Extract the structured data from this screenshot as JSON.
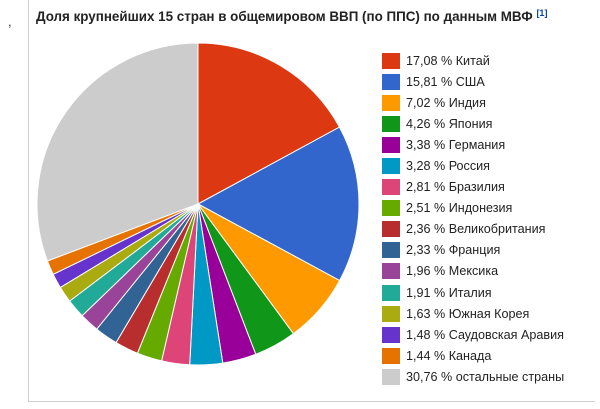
{
  "page": {
    "stray_mark": ",",
    "title": "Доля крупнейших 15 стран в общемировом ВВП (по ППС) по данным МВФ",
    "footnote": "[1]"
  },
  "chart_data": {
    "type": "pie",
    "title": "Доля крупнейших 15 стран в общемировом ВВП (по ППС) по данным МВФ",
    "unit": "%",
    "legend_position": "right",
    "slices": [
      {
        "name": "Китай",
        "value": 17.08,
        "label": "17,08 % Китай",
        "color": "#dc3912"
      },
      {
        "name": "США",
        "value": 15.81,
        "label": "15,81 % США",
        "color": "#3366cc"
      },
      {
        "name": "Индия",
        "value": 7.02,
        "label": "7,02 % Индия",
        "color": "#ff9900"
      },
      {
        "name": "Япония",
        "value": 4.26,
        "label": "4,26 % Япония",
        "color": "#109618"
      },
      {
        "name": "Германия",
        "value": 3.38,
        "label": "3,38 % Германия",
        "color": "#990099"
      },
      {
        "name": "Россия",
        "value": 3.28,
        "label": "3,28 % Россия",
        "color": "#0099c6"
      },
      {
        "name": "Бразилия",
        "value": 2.81,
        "label": "2,81 % Бразилия",
        "color": "#dd4477"
      },
      {
        "name": "Индонезия",
        "value": 2.51,
        "label": "2,51 % Индонезия",
        "color": "#66aa00"
      },
      {
        "name": "Великобритания",
        "value": 2.36,
        "label": "2,36 % Великобритания",
        "color": "#b82e2e"
      },
      {
        "name": "Франция",
        "value": 2.33,
        "label": "2,33 % Франция",
        "color": "#316395"
      },
      {
        "name": "Мексика",
        "value": 1.96,
        "label": "1,96 % Мексика",
        "color": "#994499"
      },
      {
        "name": "Италия",
        "value": 1.91,
        "label": "1,91 % Италия",
        "color": "#22aa99"
      },
      {
        "name": "Южная Корея",
        "value": 1.63,
        "label": "1,63 % Южная Корея",
        "color": "#aaaa11"
      },
      {
        "name": "Саудовская Аравия",
        "value": 1.48,
        "label": "1,48 % Саудовская Аравия",
        "color": "#6633cc"
      },
      {
        "name": "Канада",
        "value": 1.44,
        "label": "1,44 % Канада",
        "color": "#e67300"
      },
      {
        "name": "остальные страны",
        "value": 30.76,
        "label": "30,76 % остальные страны",
        "color": "#cccccc"
      }
    ]
  }
}
